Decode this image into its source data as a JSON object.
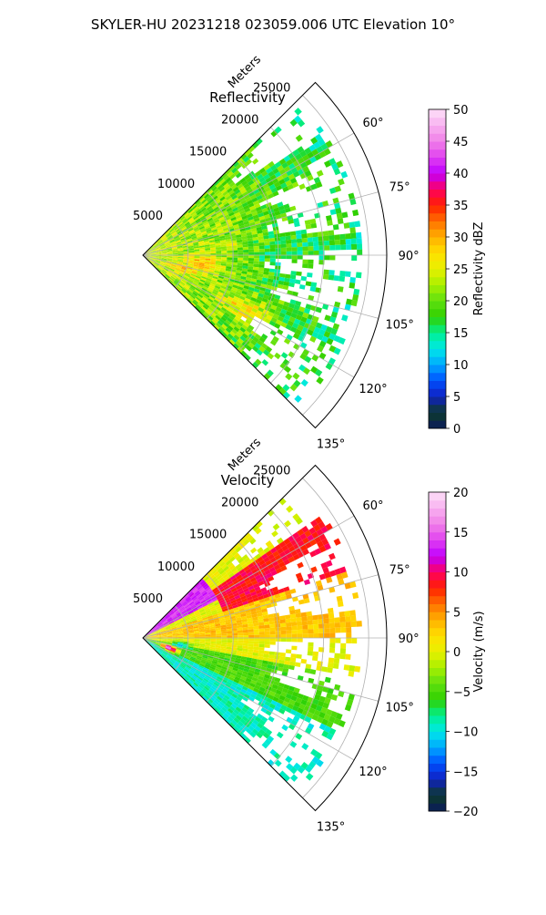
{
  "figure": {
    "title": "SKYLER-HU  20231218  023059.006 UTC Elevation 10°"
  },
  "chart_data": [
    {
      "type": "heatmap",
      "subtype": "polar-sector",
      "title": "Reflectivity",
      "radial_label": "Meters",
      "radial_ticks": [
        5000,
        10000,
        15000,
        20000,
        25000
      ],
      "radial_tick_labels": [
        "5000",
        "10000",
        "15000",
        "20000",
        "25000"
      ],
      "azimuth_range_deg": [
        45,
        135
      ],
      "azimuth_ticks": [
        60,
        75,
        90,
        105,
        120,
        135
      ],
      "azimuth_tick_labels": [
        "60°",
        "75°",
        "90°",
        "105°",
        "120°",
        "135°"
      ],
      "grid": true,
      "colorbar": {
        "label": "Reflectivity dBZ",
        "range": [
          0,
          50
        ],
        "ticks": [
          0,
          5,
          10,
          15,
          20,
          25,
          30,
          35,
          40,
          45,
          50
        ],
        "tick_labels": [
          "0",
          "5",
          "10",
          "15",
          "20",
          "25",
          "30",
          "35",
          "40",
          "45",
          "50"
        ],
        "stops": [
          {
            "value": 0,
            "color": "#0a1a5c"
          },
          {
            "value": 2.5,
            "color": "#0d3b2a"
          },
          {
            "value": 5,
            "color": "#1020c0"
          },
          {
            "value": 7.5,
            "color": "#0050ff"
          },
          {
            "value": 10,
            "color": "#00a8ff"
          },
          {
            "value": 12.5,
            "color": "#00e8e8"
          },
          {
            "value": 15,
            "color": "#00f090"
          },
          {
            "value": 17.5,
            "color": "#30d000"
          },
          {
            "value": 20,
            "color": "#60e010"
          },
          {
            "value": 22.5,
            "color": "#a8f000"
          },
          {
            "value": 25,
            "color": "#e8f000"
          },
          {
            "value": 27.5,
            "color": "#ffe000"
          },
          {
            "value": 30,
            "color": "#ffb000"
          },
          {
            "value": 32.5,
            "color": "#ff7000"
          },
          {
            "value": 35,
            "color": "#ff2000"
          },
          {
            "value": 37.5,
            "color": "#ff0060"
          },
          {
            "value": 40,
            "color": "#c000ff"
          },
          {
            "value": 42.5,
            "color": "#e040f0"
          },
          {
            "value": 45,
            "color": "#f080e8"
          },
          {
            "value": 47.5,
            "color": "#f8b0f0"
          },
          {
            "value": 50,
            "color": "#fde0f8"
          }
        ]
      },
      "field": {
        "max_range_m": 24000,
        "base": 24,
        "edge": 16,
        "jitter": 4,
        "features": [
          {
            "az": 96,
            "r": 6500,
            "amp": 7,
            "saz": 7,
            "sr": 2000
          },
          {
            "az": 108,
            "r": 4500,
            "amp": 6,
            "saz": 5,
            "sr": 2000
          },
          {
            "az": 117,
            "r": 12500,
            "amp": 8,
            "saz": 5,
            "sr": 2800
          },
          {
            "az": 82,
            "r": 9000,
            "amp": 3,
            "saz": 4,
            "sr": 2500
          },
          {
            "az": 90,
            "r": 15000,
            "amp": -3,
            "saz": 10,
            "sr": 3000
          }
        ]
      }
    },
    {
      "type": "heatmap",
      "subtype": "polar-sector",
      "title": "Velocity",
      "radial_label": "Meters",
      "radial_ticks": [
        5000,
        10000,
        15000,
        20000,
        25000
      ],
      "radial_tick_labels": [
        "5000",
        "10000",
        "15000",
        "20000",
        "25000"
      ],
      "azimuth_range_deg": [
        45,
        135
      ],
      "azimuth_ticks": [
        60,
        75,
        90,
        105,
        120,
        135
      ],
      "azimuth_tick_labels": [
        "60°",
        "75°",
        "90°",
        "105°",
        "120°",
        "135°"
      ],
      "grid": true,
      "colorbar": {
        "label": "Velocity (m/s)",
        "range": [
          -20,
          20
        ],
        "ticks": [
          -20,
          -15,
          -10,
          -5,
          0,
          5,
          10,
          15,
          20
        ],
        "tick_labels": [
          "−20",
          "−15",
          "−10",
          "−5",
          "0",
          "5",
          "10",
          "15",
          "20"
        ],
        "stops": [
          {
            "value": -20,
            "color": "#0a1a5c"
          },
          {
            "value": -18,
            "color": "#0d3b2a"
          },
          {
            "value": -16,
            "color": "#1020c0"
          },
          {
            "value": -14,
            "color": "#0050ff"
          },
          {
            "value": -12,
            "color": "#00a8ff"
          },
          {
            "value": -10,
            "color": "#00e8e8"
          },
          {
            "value": -8,
            "color": "#00f090"
          },
          {
            "value": -6,
            "color": "#30d000"
          },
          {
            "value": -4,
            "color": "#60e010"
          },
          {
            "value": -2,
            "color": "#a8f000"
          },
          {
            "value": 0,
            "color": "#e8f000"
          },
          {
            "value": 2,
            "color": "#ffe000"
          },
          {
            "value": 4,
            "color": "#ffb000"
          },
          {
            "value": 6,
            "color": "#ff7000"
          },
          {
            "value": 8,
            "color": "#ff2000"
          },
          {
            "value": 10,
            "color": "#ff0060"
          },
          {
            "value": 12,
            "color": "#c000ff"
          },
          {
            "value": 14,
            "color": "#e040f0"
          },
          {
            "value": 16,
            "color": "#f080e8"
          },
          {
            "value": 18,
            "color": "#f8b0f0"
          },
          {
            "value": 20,
            "color": "#fde0f8"
          }
        ]
      },
      "field": {
        "max_range_m": 24000,
        "regions": [
          {
            "az_min": 45,
            "az_max": 62,
            "r_min": 0,
            "r_max": 9000,
            "value": 13
          },
          {
            "az_min": 55,
            "az_max": 72,
            "r_min": 9000,
            "r_max": 24000,
            "value": 9
          },
          {
            "az_min": 72,
            "az_max": 90,
            "r_min": 0,
            "r_max": 24000,
            "value": 3
          },
          {
            "az_min": 90,
            "az_max": 100,
            "r_min": 0,
            "r_max": 24000,
            "value": 0
          },
          {
            "az_min": 100,
            "az_max": 115,
            "r_min": 0,
            "r_max": 24000,
            "value": -5
          },
          {
            "az_min": 115,
            "az_max": 135,
            "r_min": 0,
            "r_max": 24000,
            "value": -9
          }
        ],
        "features": [
          {
            "az": 110,
            "r": 2800,
            "value": 16,
            "saz": 6,
            "sr": 900
          },
          {
            "az": 100,
            "r": 4000,
            "value": -11,
            "saz": 5,
            "sr": 1100
          }
        ]
      }
    }
  ]
}
